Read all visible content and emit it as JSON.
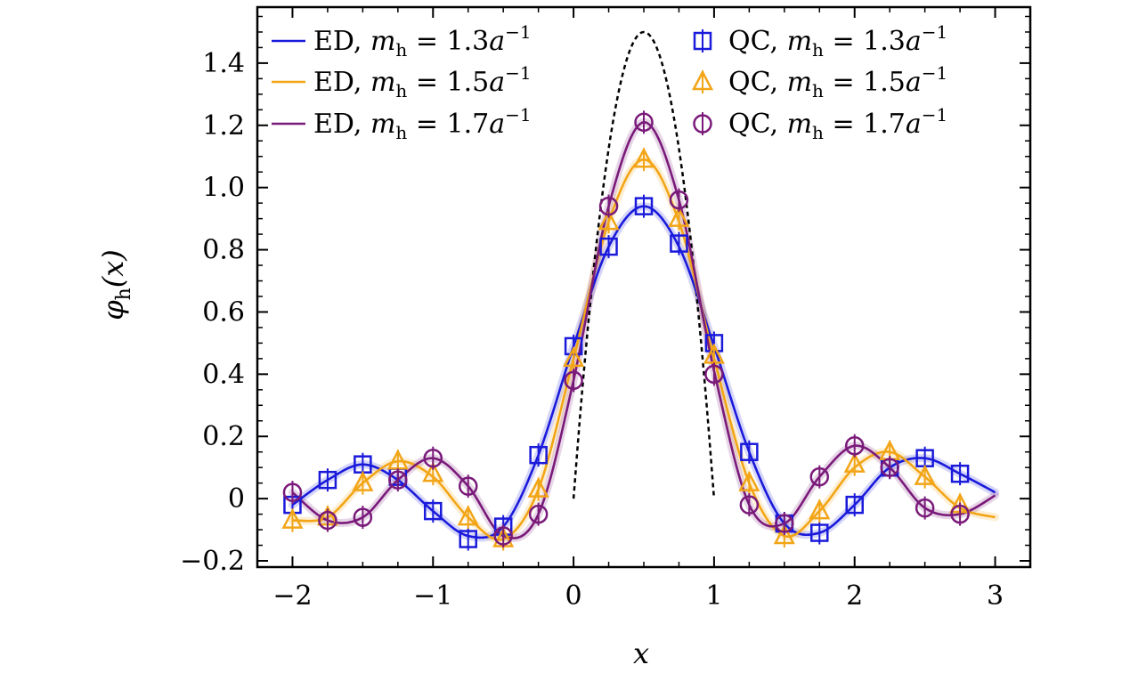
{
  "chart_data": {
    "type": "line",
    "xlabel": "x",
    "ylabel_main": "φ",
    "ylabel_sub": "h",
    "ylabel_tail": "(x)",
    "xlim": [
      -2.25,
      3.25
    ],
    "ylim": [
      -0.22,
      1.58
    ],
    "x_ticks": [
      -2,
      -1,
      0,
      1,
      2,
      3
    ],
    "x_tick_labels": [
      "−2",
      "−1",
      "0",
      "1",
      "2",
      "3"
    ],
    "y_ticks": [
      -0.2,
      0,
      0.2,
      0.4,
      0.6,
      0.8,
      1.0,
      1.2,
      1.4
    ],
    "y_tick_labels": [
      "−0.2",
      "0",
      "0.2",
      "0.4",
      "0.6",
      "0.8",
      "1.0",
      "1.2",
      "1.4"
    ],
    "legend_location": "top",
    "colors": {
      "m13": "#1a1adb",
      "m15": "#f2a516",
      "m17": "#7a1a7a",
      "reference": "#000000"
    },
    "reference_curve": {
      "name": "asymptotic",
      "style": "dashed",
      "x": [
        0,
        0.05,
        0.1,
        0.15,
        0.2,
        0.25,
        0.3,
        0.35,
        0.4,
        0.45,
        0.5,
        0.55,
        0.6,
        0.65,
        0.7,
        0.75,
        0.8,
        0.85,
        0.9,
        0.95,
        1.0
      ],
      "y": [
        0,
        0.285,
        0.54,
        0.765,
        0.96,
        1.125,
        1.26,
        1.365,
        1.44,
        1.485,
        1.5,
        1.485,
        1.44,
        1.365,
        1.26,
        1.125,
        0.96,
        0.765,
        0.54,
        0.285,
        0
      ]
    },
    "series": [
      {
        "key": "m13",
        "method": "ED",
        "mass": "1.3",
        "x": [
          -2,
          -1.75,
          -1.5,
          -1.25,
          -1,
          -0.75,
          -0.5,
          -0.25,
          0,
          0.25,
          0.5,
          0.75,
          1,
          1.25,
          1.5,
          1.75,
          2,
          2.25,
          2.5,
          2.75,
          3
        ],
        "y": [
          -0.02,
          0.06,
          0.11,
          0.06,
          -0.04,
          -0.12,
          -0.09,
          0.14,
          0.49,
          0.81,
          0.94,
          0.81,
          0.49,
          0.15,
          -0.08,
          -0.11,
          -0.02,
          0.1,
          0.13,
          0.08,
          0.02
        ]
      },
      {
        "key": "m15",
        "method": "ED",
        "mass": "1.5",
        "x": [
          -2,
          -1.75,
          -1.5,
          -1.25,
          -1,
          -0.75,
          -0.5,
          -0.25,
          0,
          0.25,
          0.5,
          0.75,
          1,
          1.25,
          1.5,
          1.75,
          2,
          2.25,
          2.5,
          2.75,
          3
        ],
        "y": [
          -0.07,
          -0.06,
          0.05,
          0.12,
          0.07,
          -0.06,
          -0.13,
          0.03,
          0.45,
          0.89,
          1.09,
          0.89,
          0.45,
          0.05,
          -0.12,
          -0.04,
          0.1,
          0.15,
          0.07,
          -0.03,
          -0.06
        ]
      },
      {
        "key": "m17",
        "method": "ED",
        "mass": "1.7",
        "x": [
          -2,
          -1.75,
          -1.5,
          -1.25,
          -1,
          -0.75,
          -0.5,
          -0.25,
          0,
          0.25,
          0.5,
          0.75,
          1,
          1.25,
          1.5,
          1.75,
          2,
          2.25,
          2.5,
          2.75,
          3
        ],
        "y": [
          0.02,
          -0.07,
          -0.06,
          0.06,
          0.13,
          0.04,
          -0.12,
          -0.05,
          0.38,
          0.94,
          1.21,
          0.96,
          0.41,
          -0.02,
          -0.08,
          0.07,
          0.17,
          0.1,
          -0.03,
          -0.05,
          0.01
        ]
      }
    ],
    "qc_points": [
      {
        "key": "m13",
        "marker": "square",
        "x": [
          -2,
          -1.75,
          -1.5,
          -1.25,
          -1,
          -0.75,
          -0.5,
          -0.25,
          0,
          0.25,
          0.5,
          0.75,
          1,
          1.25,
          1.5,
          1.75,
          2,
          2.25,
          2.5,
          2.75
        ],
        "y": [
          -0.02,
          0.06,
          0.11,
          0.07,
          -0.04,
          -0.13,
          -0.09,
          0.14,
          0.49,
          0.81,
          0.94,
          0.82,
          0.5,
          0.15,
          -0.08,
          -0.11,
          -0.02,
          0.1,
          0.13,
          0.08
        ]
      },
      {
        "key": "m15",
        "marker": "triangle",
        "x": [
          -2,
          -1.75,
          -1.5,
          -1.25,
          -1,
          -0.75,
          -0.5,
          -0.25,
          0,
          0.25,
          0.5,
          0.75,
          1,
          1.25,
          1.5,
          1.75,
          2,
          2.25,
          2.5,
          2.75
        ],
        "y": [
          -0.07,
          -0.06,
          0.05,
          0.12,
          0.08,
          -0.06,
          -0.13,
          0.03,
          0.45,
          0.89,
          1.09,
          0.9,
          0.46,
          0.05,
          -0.12,
          -0.04,
          0.11,
          0.15,
          0.07,
          -0.02
        ]
      },
      {
        "key": "m17",
        "marker": "circle",
        "x": [
          -2,
          -1.75,
          -1.5,
          -1.25,
          -1,
          -0.75,
          -0.5,
          -0.25,
          0,
          0.25,
          0.5,
          0.75,
          1,
          1.25,
          1.5,
          1.75,
          2,
          2.25,
          2.5,
          2.75
        ],
        "y": [
          0.02,
          -0.07,
          -0.06,
          0.06,
          0.13,
          0.04,
          -0.12,
          -0.05,
          0.38,
          0.94,
          1.21,
          0.96,
          0.4,
          -0.02,
          -0.08,
          0.07,
          0.17,
          0.1,
          -0.03,
          -0.05
        ]
      }
    ],
    "legend": [
      {
        "key": "m13",
        "kind": "line",
        "label_method": "ED",
        "label_mass": "1.3"
      },
      {
        "key": "m15",
        "kind": "line",
        "label_method": "ED",
        "label_mass": "1.5"
      },
      {
        "key": "m17",
        "kind": "line",
        "label_method": "ED",
        "label_mass": "1.7"
      },
      {
        "key": "m13",
        "kind": "square",
        "label_method": "QC",
        "label_mass": "1.3"
      },
      {
        "key": "m15",
        "kind": "triangle",
        "label_method": "QC",
        "label_mass": "1.5"
      },
      {
        "key": "m17",
        "kind": "circle",
        "label_method": "QC",
        "label_mass": "1.7"
      }
    ],
    "legend_symbol": "m",
    "legend_symbol_sub": "h",
    "legend_unit": "a",
    "legend_unit_exp": "−1"
  }
}
